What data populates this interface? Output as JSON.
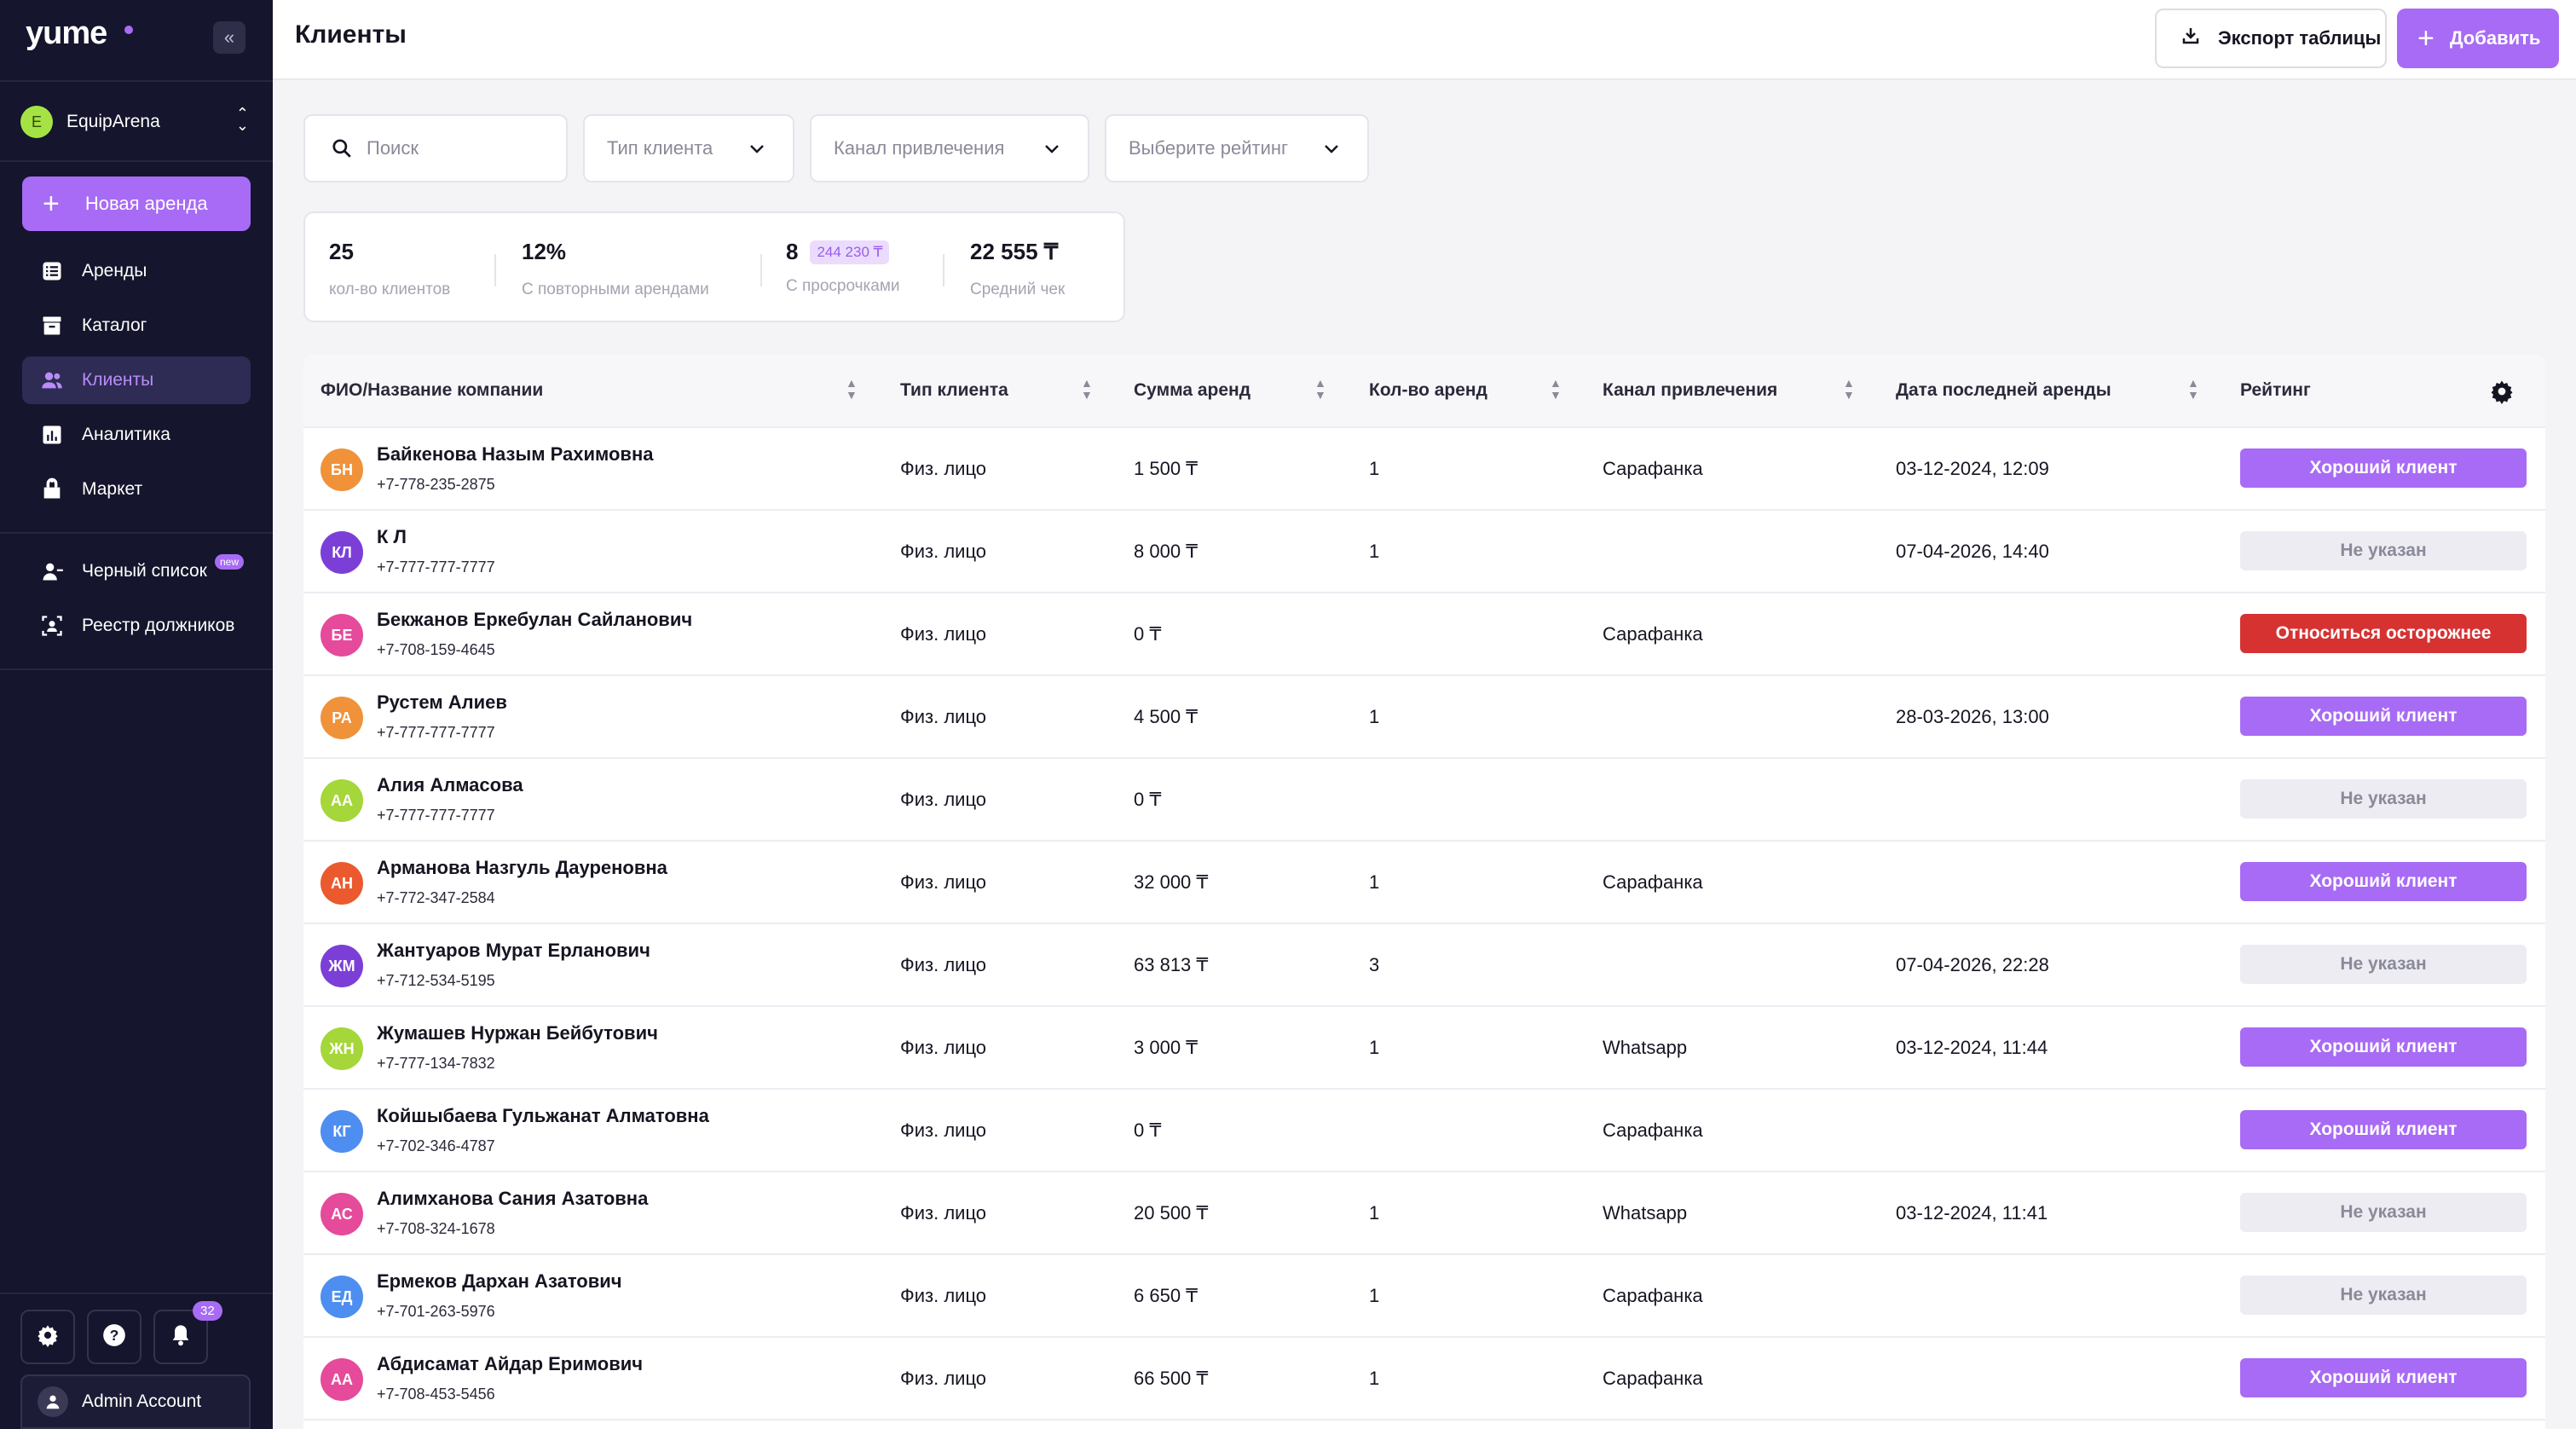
{
  "sidebar": {
    "logo": "yume",
    "org_initial": "E",
    "org_name": "EquipArena",
    "new_rent_label": "Новая аренда",
    "nav": [
      {
        "label": "Аренды",
        "icon": "list-icon",
        "active": false
      },
      {
        "label": "Каталог",
        "icon": "archive-icon",
        "active": false
      },
      {
        "label": "Клиенты",
        "icon": "users-icon",
        "active": true
      },
      {
        "label": "Аналитика",
        "icon": "chart-icon",
        "active": false
      },
      {
        "label": "Маркет",
        "icon": "market-icon",
        "active": false
      }
    ],
    "nav2": [
      {
        "label": "Черный список",
        "icon": "user-block-icon",
        "badge": "new"
      },
      {
        "label": "Реестр должников",
        "icon": "scan-user-icon"
      }
    ],
    "notifications_count": "32",
    "account_name": "Admin Account"
  },
  "header": {
    "title": "Клиенты",
    "export_label": "Экспорт таблицы",
    "add_label": "Добавить"
  },
  "filters": {
    "search_placeholder": "Поиск",
    "client_type": "Тип клиента",
    "channel": "Канал привлечения",
    "rating": "Выберите рейтинг"
  },
  "stats": [
    {
      "value": "25",
      "label": "кол-во клиентов"
    },
    {
      "value": "12%",
      "label": "С повторными арендами"
    },
    {
      "value": "8",
      "sub": "244 230 ₸",
      "label": "С просрочками"
    },
    {
      "value": "22 555 ₸",
      "label": "Средний чек"
    }
  ],
  "table": {
    "columns": [
      "ФИО/Название компании",
      "Тип клиента",
      "Сумма аренд",
      "Кол-во аренд",
      "Канал привлечения",
      "Дата последней аренды",
      "Рейтинг"
    ],
    "rows": [
      {
        "initials": "БН",
        "color": "#f0923a",
        "name": "Байкенова Назым Рахимовна",
        "phone": "+7-778-235-2875",
        "type": "Физ. лицо",
        "sum": "1 500 ₸",
        "count": "1",
        "channel": "Сарафанка",
        "date": "03-12-2024, 12:09",
        "rating": "Хороший клиент",
        "rating_kind": "good"
      },
      {
        "initials": "КЛ",
        "color": "#7b3fd8",
        "name": "К Л",
        "phone": "+7-777-777-7777",
        "type": "Физ. лицо",
        "sum": "8 000 ₸",
        "count": "1",
        "channel": "",
        "date": "07-04-2026, 14:40",
        "rating": "Не указан",
        "rating_kind": "none"
      },
      {
        "initials": "БЕ",
        "color": "#e64a9a",
        "name": "Бекжанов Еркебулан Сайланович",
        "phone": "+7-708-159-4645",
        "type": "Физ. лицо",
        "sum": "0 ₸",
        "count": "",
        "channel": "Сарафанка",
        "date": "",
        "rating": "Относиться осторожнее",
        "rating_kind": "careful"
      },
      {
        "initials": "РА",
        "color": "#f0923a",
        "name": "Рустем Алиев",
        "phone": "+7-777-777-7777",
        "type": "Физ. лицо",
        "sum": "4 500 ₸",
        "count": "1",
        "channel": "",
        "date": "28-03-2026, 13:00",
        "rating": "Хороший клиент",
        "rating_kind": "good"
      },
      {
        "initials": "АА",
        "color": "#a5d63a",
        "name": "Алия Алмасова",
        "phone": "+7-777-777-7777",
        "type": "Физ. лицо",
        "sum": "0 ₸",
        "count": "",
        "channel": "",
        "date": "",
        "rating": "Не указан",
        "rating_kind": "none"
      },
      {
        "initials": "АН",
        "color": "#ea5a2e",
        "name": "Арманова Назгуль Дауреновна",
        "phone": "+7-772-347-2584",
        "type": "Физ. лицо",
        "sum": "32 000 ₸",
        "count": "1",
        "channel": "Сарафанка",
        "date": "",
        "rating": "Хороший клиент",
        "rating_kind": "good"
      },
      {
        "initials": "ЖМ",
        "color": "#7b3fd8",
        "name": "Жантуаров Мурат Ерланович",
        "phone": "+7-712-534-5195",
        "type": "Физ. лицо",
        "sum": "63 813 ₸",
        "count": "3",
        "channel": "",
        "date": "07-04-2026, 22:28",
        "rating": "Не указан",
        "rating_kind": "none"
      },
      {
        "initials": "ЖН",
        "color": "#a5d63a",
        "name": "Жумашев Нуржан Бейбутович",
        "phone": "+7-777-134-7832",
        "type": "Физ. лицо",
        "sum": "3 000 ₸",
        "count": "1",
        "channel": "Whatsapp",
        "date": "03-12-2024, 11:44",
        "rating": "Хороший клиент",
        "rating_kind": "good"
      },
      {
        "initials": "КГ",
        "color": "#4d8ef0",
        "name": "Койшыбаева Гульжанат Алматовна",
        "phone": "+7-702-346-4787",
        "type": "Физ. лицо",
        "sum": "0 ₸",
        "count": "",
        "channel": "Сарафанка",
        "date": "",
        "rating": "Хороший клиент",
        "rating_kind": "good"
      },
      {
        "initials": "АС",
        "color": "#e64a9a",
        "name": "Алимханова Сания Азатовна",
        "phone": "+7-708-324-1678",
        "type": "Физ. лицо",
        "sum": "20 500 ₸",
        "count": "1",
        "channel": "Whatsapp",
        "date": "03-12-2024, 11:41",
        "rating": "Не указан",
        "rating_kind": "none"
      },
      {
        "initials": "ЕД",
        "color": "#4d8ef0",
        "name": "Ермеков Дархан Азатович",
        "phone": "+7-701-263-5976",
        "type": "Физ. лицо",
        "sum": "6 650 ₸",
        "count": "1",
        "channel": "Сарафанка",
        "date": "",
        "rating": "Не указан",
        "rating_kind": "none"
      },
      {
        "initials": "АА",
        "color": "#e64a9a",
        "name": "Абдисамат Айдар Еримович",
        "phone": "+7-708-453-5456",
        "type": "Физ. лицо",
        "sum": "66 500 ₸",
        "count": "1",
        "channel": "Сарафанка",
        "date": "",
        "rating": "Хороший клиент",
        "rating_kind": "good"
      }
    ]
  },
  "colors": {
    "accent": "#a86bf5",
    "sidebar_bg": "#15152d",
    "careful": "#d63232",
    "none_bg": "#ececf2"
  }
}
